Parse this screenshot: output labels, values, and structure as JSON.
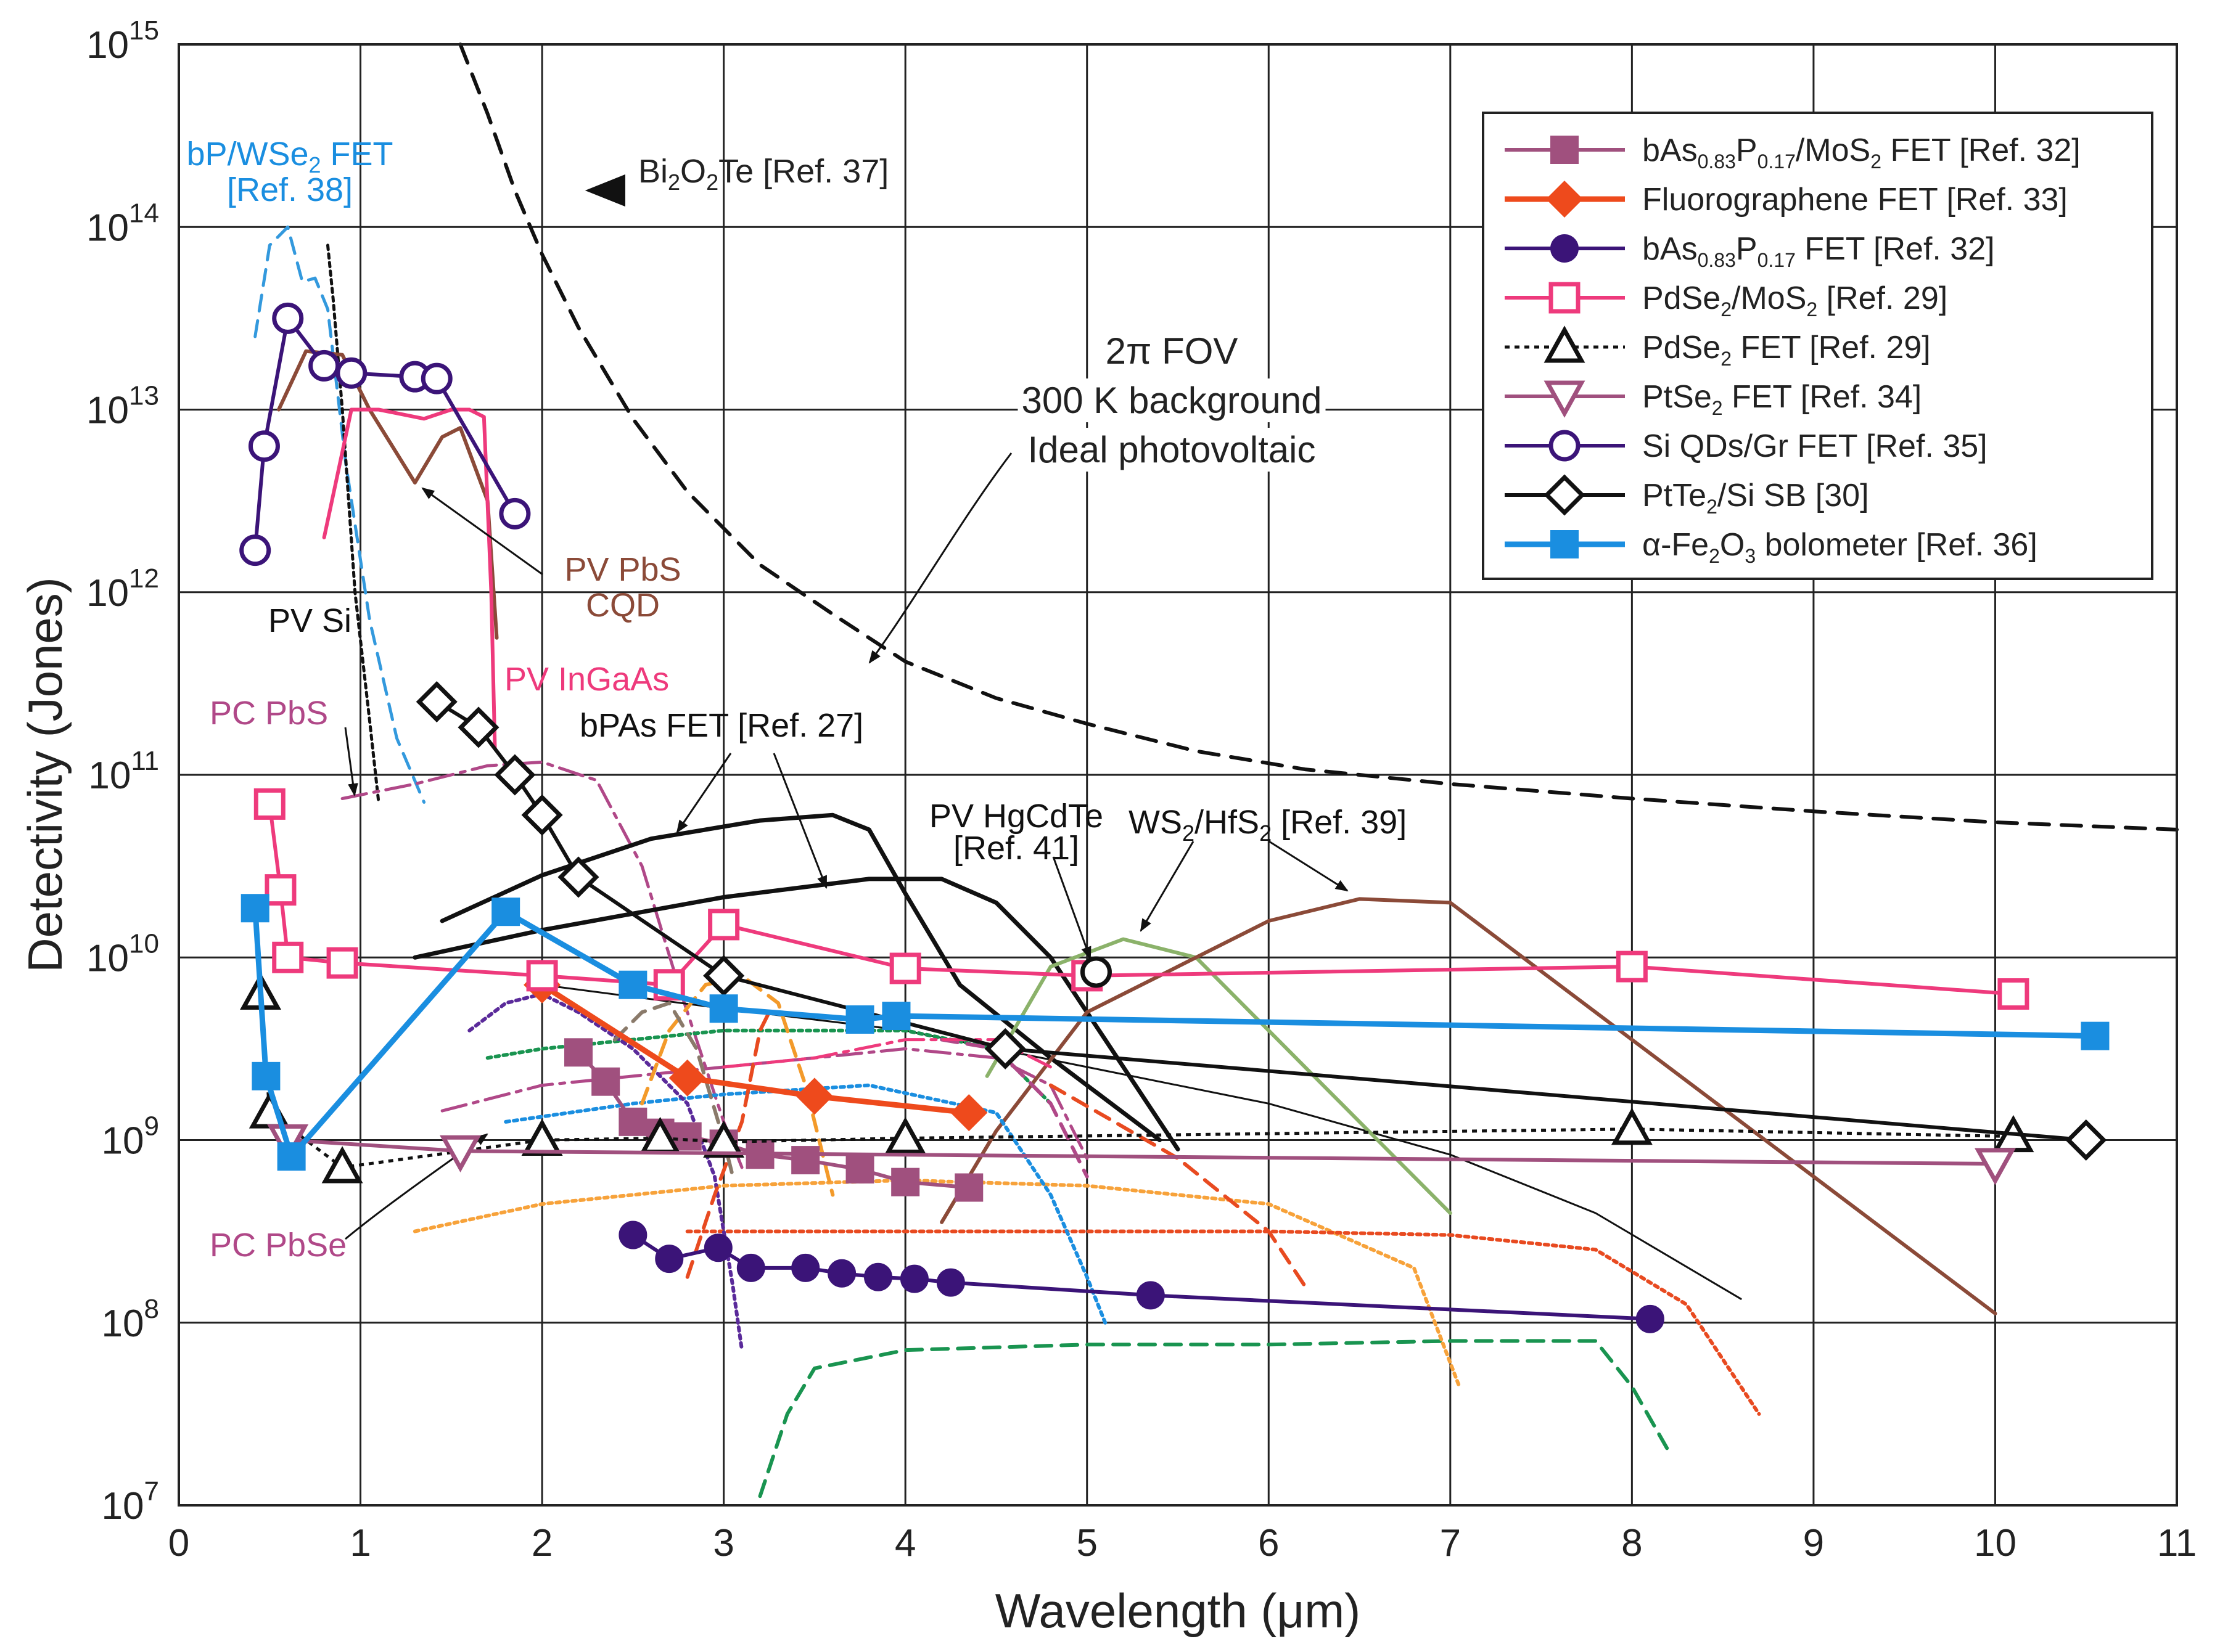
{
  "chart_data": {
    "type": "line",
    "xlabel": "Wavelength (μm)",
    "ylabel": "Detectivity (Jones)",
    "xlim": [
      0,
      11
    ],
    "ylim_log10": [
      7,
      15
    ],
    "y_scale": "log",
    "grid": true,
    "legend_placement": "top-right",
    "x_ticks": [
      "0",
      "1",
      "2",
      "3",
      "4",
      "5",
      "6",
      "7",
      "8",
      "9",
      "10",
      "11"
    ],
    "y_ticks": [
      {
        "base": "10",
        "exp": "7",
        "v": 7
      },
      {
        "base": "10",
        "exp": "8",
        "v": 8
      },
      {
        "base": "10",
        "exp": "9",
        "v": 9
      },
      {
        "base": "10",
        "exp": "10",
        "v": 10
      },
      {
        "base": "10",
        "exp": "11",
        "v": 11
      },
      {
        "base": "10",
        "exp": "12",
        "v": 12
      },
      {
        "base": "10",
        "exp": "13",
        "v": 13
      },
      {
        "base": "10",
        "exp": "14",
        "v": 14
      },
      {
        "base": "10",
        "exp": "15",
        "v": 15
      }
    ],
    "series": [
      {
        "name": "bAs0.83P0.17/MoS2 FET [Ref. 32]",
        "legend": [
          "bAs",
          "0.83",
          "P",
          "0.17",
          "/MoS",
          "2",
          " FET [Ref. 32]"
        ],
        "color": "#a0507e",
        "marker": "square-filled",
        "lw": 6,
        "x": [
          2.2,
          2.35,
          2.5,
          2.65,
          2.8,
          3.0,
          3.2,
          3.45,
          3.75,
          4.0,
          4.35
        ],
        "y": [
          9.48,
          9.32,
          9.1,
          9.04,
          9.02,
          8.98,
          8.92,
          8.89,
          8.84,
          8.77,
          8.74
        ]
      },
      {
        "name": "Fluorographene FET [Ref. 33]",
        "legend": [
          "Fluorographene FET [Ref. 33]"
        ],
        "color": "#ee4a1c",
        "marker": "diamond-filled",
        "lw": 9,
        "x": [
          2.0,
          2.8,
          3.5,
          4.35
        ],
        "y": [
          9.85,
          9.34,
          9.24,
          9.15
        ]
      },
      {
        "name": "bAs0.83P0.17 FET [Ref. 32]",
        "legend": [
          "bAs",
          "0.83",
          "P",
          "0.17",
          " FET [Ref. 32]"
        ],
        "color": "#3b1478",
        "marker": "circle-filled",
        "lw": 6,
        "x": [
          2.5,
          2.7,
          2.97,
          3.15,
          3.45,
          3.65,
          3.85,
          4.05,
          4.25,
          5.35,
          8.1
        ],
        "y": [
          8.48,
          8.35,
          8.41,
          8.3,
          8.3,
          8.27,
          8.25,
          8.24,
          8.22,
          8.15,
          8.02
        ]
      },
      {
        "name": "PdSe2/MoS2 [Ref. 29]",
        "legend": [
          "PdSe",
          "2",
          "/MoS",
          "2",
          " [Ref. 29]"
        ],
        "color": "#ee3a7c",
        "marker": "square-open",
        "lw": 6,
        "x": [
          0.5,
          0.56,
          0.6,
          0.9,
          2.0,
          2.7,
          3.0,
          4.0,
          5.0,
          8.0,
          10.1
        ],
        "y": [
          10.84,
          10.37,
          10.0,
          9.97,
          9.9,
          9.85,
          10.18,
          9.94,
          9.9,
          9.95,
          9.8
        ]
      },
      {
        "name": "PdSe2 FET [Ref. 29]",
        "legend": [
          "PdSe",
          "2",
          " FET [Ref. 29]"
        ],
        "color": "#111111",
        "marker": "triangle-up-open",
        "lw": 5,
        "dash": "8,8",
        "x": [
          0.45,
          0.5,
          0.9,
          2.0,
          2.65,
          3.0,
          4.0,
          8.0,
          10.1
        ],
        "y": [
          9.8,
          9.15,
          8.85,
          9.0,
          9.01,
          8.99,
          9.01,
          9.06,
          9.02
        ]
      },
      {
        "name": "PtSe2 FET [Ref. 34]",
        "legend": [
          "PtSe",
          "2",
          " FET [Ref. 34]"
        ],
        "color": "#a0507e",
        "marker": "triangle-down-open",
        "lw": 6,
        "x": [
          0.6,
          1.55,
          10.0
        ],
        "y": [
          9.0,
          8.94,
          8.87
        ]
      },
      {
        "name": "Si QDs/Gr FET [Ref. 35]",
        "legend": [
          "Si QDs/Gr FET [Ref. 35]"
        ],
        "color": "#3b1478",
        "marker": "circle-open",
        "lw": 6,
        "x": [
          0.42,
          0.47,
          0.6,
          0.8,
          0.95,
          1.3,
          1.42,
          1.85
        ],
        "y": [
          12.23,
          12.8,
          13.5,
          13.24,
          13.2,
          13.18,
          13.17,
          12.43
        ]
      },
      {
        "name": "PtTe2/Si SB [30]",
        "legend": [
          "PtTe",
          "2",
          "/Si SB [30]"
        ],
        "color": "#111111",
        "marker": "diamond-open",
        "lw": 6,
        "x": [
          1.42,
          1.65,
          1.85,
          2.0,
          2.2,
          3.0,
          4.55,
          10.5
        ],
        "y": [
          11.4,
          11.26,
          11.0,
          10.78,
          10.44,
          9.9,
          9.5,
          9.0
        ]
      },
      {
        "name": "α-Fe2O3 bolometer [Ref. 36]",
        "legend": [
          "α-Fe",
          "2",
          "O",
          "3",
          " bolometer [Ref. 36]"
        ],
        "color": "#1a8ee0",
        "marker": "square-filled",
        "lw": 9,
        "x": [
          0.42,
          0.48,
          0.62,
          1.8,
          2.5,
          3.0,
          3.75,
          3.95,
          10.55
        ],
        "y": [
          10.27,
          9.35,
          8.91,
          10.25,
          9.85,
          9.72,
          9.66,
          9.68,
          9.57
        ]
      }
    ],
    "reference_curves": [
      {
        "name": "2π FOV 300 K background ideal photovoltaic",
        "color": "#111111",
        "dash": "32,20",
        "lw": 6,
        "x": [
          1.55,
          1.7,
          1.85,
          2.0,
          2.2,
          2.5,
          2.8,
          3.2,
          3.6,
          4.0,
          4.5,
          5.0,
          5.6,
          6.2,
          7.0,
          8.0,
          9.0,
          10.0,
          11.0
        ],
        "y": [
          15.0,
          14.62,
          14.2,
          13.85,
          13.45,
          12.95,
          12.55,
          12.15,
          11.88,
          11.62,
          11.42,
          11.28,
          11.13,
          11.03,
          10.95,
          10.87,
          10.8,
          10.74,
          10.7
        ]
      },
      {
        "name": "bP/WSe2 FET",
        "color": "#3399dd",
        "dash": "26,16",
        "lw": 5,
        "x": [
          0.42,
          0.5,
          0.6,
          0.68,
          0.75,
          0.82,
          0.92,
          1.05,
          1.2,
          1.35
        ],
        "y": [
          13.4,
          13.9,
          14.0,
          13.7,
          13.72,
          13.55,
          12.7,
          11.85,
          11.2,
          10.85
        ]
      },
      {
        "name": "PV Si",
        "color": "#111111",
        "dash": "7,7",
        "lw": 5,
        "x": [
          0.82,
          0.85,
          0.9,
          0.97,
          1.05,
          1.1
        ],
        "y": [
          13.9,
          13.6,
          13.0,
          12.0,
          11.3,
          10.85
        ]
      },
      {
        "name": "PV PbS CQD",
        "color": "#8b4a38",
        "lw": 6,
        "x": [
          0.55,
          0.7,
          0.9,
          1.05,
          1.3,
          1.45,
          1.55,
          1.7,
          1.75
        ],
        "y": [
          13.0,
          13.32,
          13.3,
          13.0,
          12.6,
          12.85,
          12.9,
          12.5,
          11.75
        ]
      },
      {
        "name": "PV InGaAs",
        "color": "#ee3a7c",
        "lw": 6,
        "x": [
          0.8,
          0.95,
          1.1,
          1.35,
          1.5,
          1.6,
          1.68,
          1.72,
          1.74
        ],
        "y": [
          12.3,
          13.0,
          13.0,
          12.95,
          13.0,
          13.0,
          12.96,
          12.0,
          11.15
        ]
      },
      {
        "name": "PC PbS",
        "color": "#b04888",
        "dash": "40,12,8,12",
        "lw": 5,
        "x": [
          0.9,
          1.3,
          1.7,
          2.0,
          2.3,
          2.55,
          2.75,
          3.0,
          3.1
        ],
        "y": [
          10.87,
          10.95,
          11.05,
          11.07,
          10.97,
          10.5,
          9.85,
          9.1,
          8.85
        ]
      },
      {
        "name": "PC PbSe",
        "color": "#b04888",
        "dash": "40,12,8,12",
        "lw": 5,
        "x": [
          1.45,
          2.0,
          3.0,
          4.0,
          4.5,
          4.8,
          5.0
        ],
        "y": [
          9.16,
          9.3,
          9.4,
          9.5,
          9.45,
          9.3,
          8.9
        ]
      },
      {
        "name": "bPAs FET [Ref. 27] upper",
        "color": "#111111",
        "lw": 7,
        "x": [
          1.45,
          2.0,
          2.6,
          3.2,
          3.6,
          3.8,
          4.0,
          4.3,
          4.8,
          5.2,
          5.4
        ],
        "y": [
          10.2,
          10.45,
          10.65,
          10.75,
          10.78,
          10.7,
          10.35,
          9.85,
          9.45,
          9.15,
          9.0
        ]
      },
      {
        "name": "bPAs FET [Ref. 27] lower",
        "color": "#111111",
        "lw": 7,
        "x": [
          1.3,
          2.0,
          3.0,
          3.8,
          4.2,
          4.5,
          4.8,
          5.1,
          5.5
        ],
        "y": [
          10.0,
          10.15,
          10.33,
          10.43,
          10.43,
          10.3,
          10.0,
          9.55,
          8.95
        ]
      },
      {
        "name": "PV HgCdTe [Ref. 41]",
        "color": "#111111",
        "lw": 3,
        "x": [
          2.0,
          3.0,
          4.0,
          5.0,
          6.0,
          7.0,
          7.8,
          8.6
        ],
        "y": [
          9.85,
          9.72,
          9.6,
          9.4,
          9.2,
          8.92,
          8.6,
          8.13
        ]
      },
      {
        "name": "WS2/HfS2 upper",
        "color": "#8bb26a",
        "lw": 6,
        "x": [
          4.45,
          4.8,
          5.2,
          5.6,
          6.0,
          6.4,
          7.0
        ],
        "y": [
          9.35,
          9.95,
          10.1,
          10.0,
          9.6,
          9.2,
          8.6
        ]
      },
      {
        "name": "WS2/HfS2 lower",
        "color": "#8b4a38",
        "lw": 6,
        "x": [
          4.2,
          4.5,
          5.0,
          5.5,
          6.0,
          6.5,
          7.0,
          8.0,
          9.0,
          10.0
        ],
        "y": [
          8.55,
          9.05,
          9.7,
          9.95,
          10.2,
          10.32,
          10.3,
          9.55,
          8.8,
          8.05
        ]
      },
      {
        "name": "green dashed",
        "color": "#199450",
        "dash": "26,16",
        "lw": 6,
        "x": [
          3.2,
          3.35,
          3.5,
          4.0,
          5.0,
          6.0,
          7.0,
          7.8,
          8.0,
          8.2
        ],
        "y": [
          7.05,
          7.5,
          7.75,
          7.85,
          7.88,
          7.88,
          7.9,
          7.9,
          7.65,
          7.3
        ]
      },
      {
        "name": "orange dotted",
        "color": "#f7a23a",
        "dash": "6,7",
        "lw": 6,
        "x": [
          1.3,
          2.0,
          3.0,
          4.0,
          5.0,
          6.0,
          6.8,
          7.05
        ],
        "y": [
          8.5,
          8.65,
          8.75,
          8.78,
          8.75,
          8.65,
          8.3,
          7.65
        ]
      },
      {
        "name": "red dotted",
        "color": "#e84a20",
        "dash": "6,7",
        "lw": 6,
        "x": [
          2.8,
          3.0,
          4.0,
          5.0,
          6.0,
          7.0,
          7.8,
          8.3,
          8.7
        ],
        "y": [
          8.5,
          8.5,
          8.5,
          8.5,
          8.5,
          8.48,
          8.4,
          8.1,
          7.5
        ]
      },
      {
        "name": "green dotted",
        "color": "#199450",
        "dash": "6,7",
        "lw": 6,
        "x": [
          1.7,
          2.0,
          3.0,
          4.0,
          4.5,
          4.8
        ],
        "y": [
          9.45,
          9.5,
          9.6,
          9.6,
          9.5,
          9.2
        ]
      },
      {
        "name": "blue dotted",
        "color": "#1a8ee0",
        "dash": "6,7",
        "lw": 6,
        "x": [
          1.8,
          2.5,
          3.0,
          3.8,
          4.5,
          4.8,
          5.0,
          5.1
        ],
        "y": [
          9.1,
          9.2,
          9.25,
          9.3,
          9.15,
          8.7,
          8.25,
          8.0
        ]
      },
      {
        "name": "purple dotted",
        "color": "#5a2a9a",
        "dash": "6,7",
        "lw": 6,
        "x": [
          1.6,
          1.8,
          2.0,
          2.2,
          2.5,
          2.8,
          2.95,
          3.05,
          3.1
        ],
        "y": [
          9.6,
          9.75,
          9.8,
          9.7,
          9.5,
          9.2,
          8.8,
          8.2,
          7.85
        ]
      },
      {
        "name": "orange dashed",
        "color": "#f39a2a",
        "dash": "26,16",
        "lw": 6,
        "x": [
          2.55,
          2.7,
          2.9,
          3.1,
          3.3,
          3.45,
          3.6
        ],
        "y": [
          9.2,
          9.6,
          9.85,
          9.9,
          9.75,
          9.3,
          8.7
        ]
      },
      {
        "name": "red dashed",
        "color": "#e84a20",
        "dash": "26,16",
        "lw": 6,
        "x": [
          2.8,
          2.95,
          3.1,
          3.2,
          3.25
        ],
        "y": [
          8.25,
          8.7,
          9.1,
          9.6,
          9.7
        ]
      },
      {
        "name": "grey dashed",
        "color": "#8a7a6a",
        "dash": "26,16",
        "lw": 6,
        "x": [
          2.4,
          2.55,
          2.7,
          2.85,
          3.0,
          3.05
        ],
        "y": [
          9.55,
          9.7,
          9.75,
          9.5,
          9.0,
          8.8
        ]
      },
      {
        "name": "red long dashed",
        "color": "#e84a20",
        "dash": "26,16",
        "lw": 6,
        "x": [
          4.8,
          5.5,
          6.0,
          6.2
        ],
        "y": [
          9.3,
          8.9,
          8.5,
          8.2
        ]
      },
      {
        "name": "magenta dashed",
        "color": "#b04888",
        "dash": "26,16",
        "lw": 6,
        "x": [
          4.2,
          4.5,
          4.8,
          5.0
        ],
        "y": [
          9.55,
          9.5,
          9.2,
          8.8
        ]
      },
      {
        "name": "pink dash-dot",
        "color": "#ee3a7c",
        "dash": "40,12,8,12",
        "lw": 5,
        "x": [
          3.0,
          3.5,
          4.0,
          4.5,
          4.8
        ],
        "y": [
          9.4,
          9.45,
          9.55,
          9.55,
          9.4
        ]
      }
    ],
    "annotations": [
      {
        "id": "bpwse2",
        "lines": [
          [
            "bP/WSe",
            "2",
            " FET"
          ],
          [
            "[Ref. 38]"
          ]
        ],
        "color": "#1a8ee0"
      },
      {
        "id": "bi2o2te",
        "lines": [
          [
            "Bi",
            "2",
            "O",
            "2",
            "Te [Ref. 37]"
          ]
        ],
        "color": "#222222"
      },
      {
        "id": "fov",
        "lines": [
          [
            "2π FOV"
          ],
          [
            "300 K background"
          ],
          [
            "Ideal photovoltaic"
          ]
        ],
        "color": "#222222"
      },
      {
        "id": "pvpbs",
        "lines": [
          [
            "PV PbS"
          ],
          [
            "CQD"
          ]
        ],
        "color": "#8b4a38"
      },
      {
        "id": "pvsi",
        "lines": [
          [
            "PV Si"
          ]
        ],
        "color": "#111111"
      },
      {
        "id": "pvingaas",
        "lines": [
          [
            "PV InGaAs"
          ]
        ],
        "color": "#ee3a7c"
      },
      {
        "id": "pcpbs",
        "lines": [
          [
            "PC PbS"
          ]
        ],
        "color": "#b04888"
      },
      {
        "id": "bpas",
        "lines": [
          [
            "bPAs FET [Ref. 27]"
          ]
        ],
        "color": "#111111"
      },
      {
        "id": "pvhgcdte",
        "lines": [
          [
            "PV HgCdTe"
          ],
          [
            "[Ref. 41]"
          ]
        ],
        "color": "#111111"
      },
      {
        "id": "ws2hfs2",
        "lines": [
          [
            "WS",
            "2",
            "/HfS",
            "2",
            " [Ref. 39]"
          ]
        ],
        "color": "#111111"
      },
      {
        "id": "pcpbse",
        "lines": [
          [
            "PC PbSe"
          ]
        ],
        "color": "#b04888"
      }
    ],
    "extra_markers": [
      {
        "name": "Bi2O2Te [Ref. 37]",
        "marker": "triangle-left-filled",
        "color": "#111111",
        "x": 2.35,
        "y": 14.2
      },
      {
        "name": "PV HgCdTe point",
        "marker": "circle-open",
        "color": "#111111",
        "x": 5.05,
        "y": 9.92
      }
    ]
  }
}
